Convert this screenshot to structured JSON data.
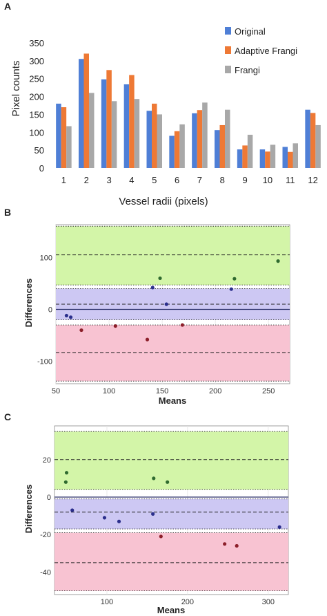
{
  "panels": {
    "a": "A",
    "b": "B",
    "c": "C"
  },
  "colors": {
    "original": "#4f7fd6",
    "adaptive": "#ee7935",
    "frangi": "#a8a8a8",
    "band_upper": "#d3f5a8",
    "band_mid": "#cdc8f3",
    "band_lower": "#f8c3d2",
    "point_green": "#2f6a2f",
    "point_blue": "#2b2f8c",
    "point_red": "#8c1f2a"
  },
  "chart_data": [
    {
      "type": "bar",
      "panel": "A",
      "categories": [
        "1",
        "2",
        "3",
        "4",
        "5",
        "6",
        "7",
        "8",
        "9",
        "10",
        "11",
        "12"
      ],
      "series": [
        {
          "name": "Original",
          "color_key": "original",
          "values": [
            180,
            305,
            248,
            234,
            160,
            90,
            153,
            106,
            52,
            52,
            59,
            163
          ]
        },
        {
          "name": "Adaptive Frangi",
          "color_key": "adaptive",
          "values": [
            170,
            320,
            274,
            260,
            180,
            103,
            162,
            120,
            63,
            46,
            45,
            154
          ]
        },
        {
          "name": "Frangi",
          "color_key": "frangi",
          "values": [
            117,
            210,
            187,
            193,
            150,
            122,
            183,
            163,
            93,
            65,
            69,
            120
          ]
        }
      ],
      "xlabel": "Vessel radii (pixels)",
      "ylabel": "Pixel counts",
      "ylim": [
        0,
        350
      ],
      "yticks": [
        0,
        50,
        100,
        150,
        200,
        250,
        300,
        350
      ],
      "legend_position": "top-right",
      "grid": false
    },
    {
      "type": "scatter",
      "panel": "B",
      "xlabel": "Means",
      "ylabel": "Differences",
      "xlim": [
        50,
        270
      ],
      "ylim": [
        -143,
        163
      ],
      "xticks": [
        50,
        100,
        150,
        200,
        250
      ],
      "yticks": [
        -100,
        0,
        100
      ],
      "bands": [
        {
          "from": 47,
          "to": 160,
          "color_key": "band_upper",
          "line": 105
        },
        {
          "from": -20,
          "to": 40,
          "color_key": "band_mid",
          "line": 10
        },
        {
          "from": -30,
          "to": -138,
          "color_key": "band_lower",
          "line": -83
        }
      ],
      "zero_line": true,
      "grid": true,
      "points": [
        {
          "x": 148,
          "y": 60,
          "color_key": "point_green"
        },
        {
          "x": 218,
          "y": 59,
          "color_key": "point_green"
        },
        {
          "x": 259,
          "y": 93,
          "color_key": "point_green"
        },
        {
          "x": 141,
          "y": 42,
          "color_key": "point_blue"
        },
        {
          "x": 215,
          "y": 39,
          "color_key": "point_blue"
        },
        {
          "x": 154,
          "y": 10,
          "color_key": "point_blue"
        },
        {
          "x": 60,
          "y": -12,
          "color_key": "point_blue"
        },
        {
          "x": 64,
          "y": -15,
          "color_key": "point_blue"
        },
        {
          "x": 74,
          "y": -40,
          "color_key": "point_red"
        },
        {
          "x": 106,
          "y": -32,
          "color_key": "point_red"
        },
        {
          "x": 169,
          "y": -30,
          "color_key": "point_red"
        },
        {
          "x": 136,
          "y": -58,
          "color_key": "point_red"
        }
      ]
    },
    {
      "type": "scatter",
      "panel": "C",
      "xlabel": "Means",
      "ylabel": "Differences",
      "xlim": [
        35,
        325
      ],
      "ylim": [
        -52,
        38
      ],
      "xticks": [
        100,
        200,
        300
      ],
      "yticks": [
        -40,
        -20,
        0,
        20
      ],
      "bands": [
        {
          "from": 4,
          "to": 35,
          "color_key": "band_upper",
          "line": 20
        },
        {
          "from": -1,
          "to": -17,
          "color_key": "band_mid",
          "line": -8
        },
        {
          "from": -19,
          "to": -50,
          "color_key": "band_lower",
          "line": -35
        }
      ],
      "zero_line": true,
      "grid": true,
      "points": [
        {
          "x": 50,
          "y": 13,
          "color_key": "point_green"
        },
        {
          "x": 49,
          "y": 8,
          "color_key": "point_green"
        },
        {
          "x": 158,
          "y": 10,
          "color_key": "point_green"
        },
        {
          "x": 175,
          "y": 8,
          "color_key": "point_green"
        },
        {
          "x": 57,
          "y": -7,
          "color_key": "point_blue"
        },
        {
          "x": 97,
          "y": -11,
          "color_key": "point_blue"
        },
        {
          "x": 115,
          "y": -13,
          "color_key": "point_blue"
        },
        {
          "x": 157,
          "y": -9,
          "color_key": "point_blue"
        },
        {
          "x": 314,
          "y": -16,
          "color_key": "point_blue"
        },
        {
          "x": 167,
          "y": -21,
          "color_key": "point_red"
        },
        {
          "x": 246,
          "y": -25,
          "color_key": "point_red"
        },
        {
          "x": 261,
          "y": -26,
          "color_key": "point_red"
        }
      ]
    }
  ]
}
